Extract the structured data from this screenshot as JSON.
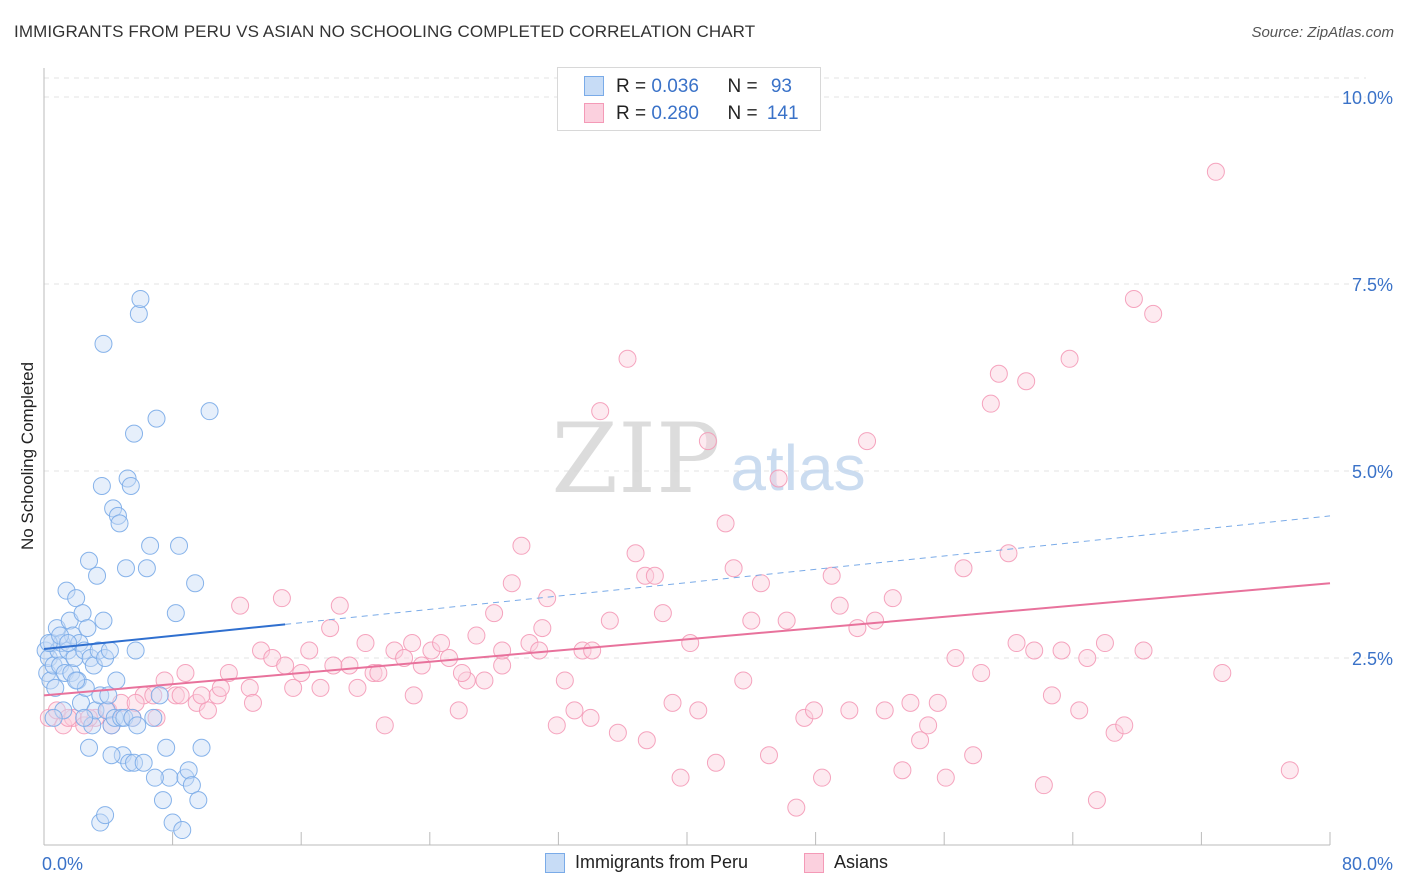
{
  "header": {
    "title": "IMMIGRANTS FROM PERU VS ASIAN NO SCHOOLING COMPLETED CORRELATION CHART",
    "source": "Source: ZipAtlas.com"
  },
  "watermark": {
    "zip": "ZIP",
    "atlas": "atlas"
  },
  "legend": {
    "rows": [
      {
        "r_label": "R = ",
        "r_value": "0.036",
        "n_label": "N = ",
        "n_value": "93",
        "color": "#7aabe8"
      },
      {
        "r_label": "R = ",
        "r_value": "0.280",
        "n_label": "N = ",
        "n_value": "141",
        "color": "#f49ab7"
      }
    ]
  },
  "bottom_legend": [
    {
      "label": "Immigrants from Peru",
      "color": "#7aabe8"
    },
    {
      "label": "Asians",
      "color": "#f49ab7"
    }
  ],
  "chart_data": {
    "type": "scatter",
    "title": "IMMIGRANTS FROM PERU VS ASIAN NO SCHOOLING COMPLETED CORRELATION CHART",
    "xlabel": "",
    "ylabel": "No Schooling Completed",
    "xlim": [
      0,
      80
    ],
    "ylim": [
      0,
      10.5
    ],
    "x_tick_labels": [
      "0.0%",
      "80.0%"
    ],
    "y_ticks": [
      2.5,
      5.0,
      7.5,
      10.0
    ],
    "y_tick_labels": [
      "2.5%",
      "5.0%",
      "7.5%",
      "10.0%"
    ],
    "grid": true,
    "legend_position": "top-center",
    "series": [
      {
        "name": "Immigrants from Peru",
        "color": "#7aabe8",
        "line_color": "#2f6fcf",
        "trend": {
          "x0": 0,
          "y0": 2.62,
          "x1": 15,
          "y1": 2.95,
          "extend_to": 80,
          "y_at_extend": 4.4
        },
        "points": [
          [
            0.1,
            2.6
          ],
          [
            0.2,
            2.3
          ],
          [
            0.3,
            2.5
          ],
          [
            0.4,
            2.2
          ],
          [
            0.5,
            2.7
          ],
          [
            0.6,
            2.4
          ],
          [
            0.7,
            2.1
          ],
          [
            0.8,
            2.9
          ],
          [
            0.9,
            2.6
          ],
          [
            1.0,
            2.4
          ],
          [
            1.1,
            2.7
          ],
          [
            1.2,
            1.8
          ],
          [
            1.3,
            2.3
          ],
          [
            1.4,
            3.4
          ],
          [
            1.5,
            2.6
          ],
          [
            1.6,
            3.0
          ],
          [
            1.7,
            2.3
          ],
          [
            1.8,
            2.8
          ],
          [
            1.9,
            2.5
          ],
          [
            2.0,
            3.3
          ],
          [
            2.1,
            2.2
          ],
          [
            2.2,
            2.7
          ],
          [
            2.3,
            1.9
          ],
          [
            2.4,
            3.1
          ],
          [
            2.5,
            2.6
          ],
          [
            2.6,
            2.1
          ],
          [
            2.7,
            2.9
          ],
          [
            2.8,
            3.8
          ],
          [
            2.9,
            2.5
          ],
          [
            3.0,
            1.6
          ],
          [
            3.1,
            2.4
          ],
          [
            3.2,
            1.8
          ],
          [
            3.3,
            3.6
          ],
          [
            3.4,
            2.6
          ],
          [
            3.5,
            2.0
          ],
          [
            3.6,
            4.8
          ],
          [
            3.7,
            3.0
          ],
          [
            3.8,
            2.5
          ],
          [
            3.9,
            1.8
          ],
          [
            4.0,
            2.0
          ],
          [
            4.1,
            2.6
          ],
          [
            4.2,
            1.6
          ],
          [
            4.3,
            4.5
          ],
          [
            4.4,
            1.7
          ],
          [
            4.5,
            2.2
          ],
          [
            4.6,
            4.4
          ],
          [
            4.7,
            4.3
          ],
          [
            4.8,
            1.7
          ],
          [
            4.9,
            1.2
          ],
          [
            5.0,
            1.7
          ],
          [
            5.1,
            3.7
          ],
          [
            5.2,
            4.9
          ],
          [
            5.3,
            1.1
          ],
          [
            5.4,
            4.8
          ],
          [
            5.5,
            1.7
          ],
          [
            5.6,
            1.1
          ],
          [
            5.7,
            2.6
          ],
          [
            5.8,
            1.6
          ],
          [
            5.9,
            7.1
          ],
          [
            6.0,
            7.3
          ],
          [
            6.2,
            1.1
          ],
          [
            6.4,
            3.7
          ],
          [
            6.6,
            4.0
          ],
          [
            6.8,
            1.7
          ],
          [
            7.0,
            5.7
          ],
          [
            7.2,
            2.0
          ],
          [
            7.4,
            0.6
          ],
          [
            7.6,
            1.3
          ],
          [
            7.8,
            0.9
          ],
          [
            8.0,
            0.3
          ],
          [
            8.2,
            3.1
          ],
          [
            8.4,
            4.0
          ],
          [
            8.6,
            0.2
          ],
          [
            8.8,
            0.9
          ],
          [
            9.0,
            1.0
          ],
          [
            9.2,
            0.8
          ],
          [
            9.4,
            3.5
          ],
          [
            9.6,
            0.6
          ],
          [
            9.8,
            1.3
          ],
          [
            10.3,
            5.8
          ],
          [
            3.7,
            6.7
          ],
          [
            5.6,
            5.5
          ],
          [
            0.3,
            2.7
          ],
          [
            0.6,
            1.7
          ],
          [
            1.0,
            2.8
          ],
          [
            1.5,
            2.7
          ],
          [
            2.0,
            2.2
          ],
          [
            2.5,
            1.7
          ],
          [
            3.5,
            0.3
          ],
          [
            3.8,
            0.4
          ],
          [
            4.2,
            1.2
          ],
          [
            6.9,
            0.9
          ],
          [
            2.8,
            1.3
          ]
        ]
      },
      {
        "name": "Asians",
        "color": "#f49ab7",
        "line_color": "#e8729c",
        "trend": {
          "x0": 0,
          "y0": 2.0,
          "x1": 80,
          "y1": 3.5
        },
        "points": [
          [
            0.3,
            1.7
          ],
          [
            0.8,
            1.8
          ],
          [
            1.2,
            1.6
          ],
          [
            1.8,
            1.7
          ],
          [
            2.5,
            1.6
          ],
          [
            3.2,
            1.7
          ],
          [
            4.0,
            1.8
          ],
          [
            4.8,
            1.9
          ],
          [
            5.5,
            1.7
          ],
          [
            6.2,
            2.0
          ],
          [
            6.8,
            2.0
          ],
          [
            7.5,
            2.2
          ],
          [
            8.2,
            2.0
          ],
          [
            8.8,
            2.3
          ],
          [
            9.5,
            1.9
          ],
          [
            10.2,
            1.8
          ],
          [
            10.8,
            2.0
          ],
          [
            11.5,
            2.3
          ],
          [
            12.2,
            3.2
          ],
          [
            12.8,
            2.1
          ],
          [
            13.5,
            2.6
          ],
          [
            14.2,
            2.5
          ],
          [
            14.8,
            3.3
          ],
          [
            15.5,
            2.1
          ],
          [
            16.0,
            2.3
          ],
          [
            16.5,
            2.6
          ],
          [
            17.2,
            2.1
          ],
          [
            17.8,
            2.9
          ],
          [
            18.4,
            3.2
          ],
          [
            19.0,
            2.4
          ],
          [
            19.5,
            2.1
          ],
          [
            20.0,
            2.7
          ],
          [
            20.5,
            2.3
          ],
          [
            21.2,
            1.6
          ],
          [
            21.8,
            2.6
          ],
          [
            22.4,
            2.5
          ],
          [
            22.9,
            2.7
          ],
          [
            23.5,
            2.4
          ],
          [
            24.1,
            2.6
          ],
          [
            24.7,
            2.7
          ],
          [
            25.2,
            2.5
          ],
          [
            25.8,
            1.8
          ],
          [
            26.3,
            2.2
          ],
          [
            26.9,
            2.8
          ],
          [
            27.4,
            2.2
          ],
          [
            28.0,
            3.1
          ],
          [
            28.5,
            2.4
          ],
          [
            29.1,
            3.5
          ],
          [
            29.7,
            4.0
          ],
          [
            30.2,
            2.7
          ],
          [
            30.8,
            2.6
          ],
          [
            31.3,
            3.3
          ],
          [
            31.9,
            1.6
          ],
          [
            32.4,
            2.2
          ],
          [
            33.0,
            1.8
          ],
          [
            33.5,
            2.6
          ],
          [
            34.1,
            2.6
          ],
          [
            34.6,
            5.8
          ],
          [
            35.2,
            3.0
          ],
          [
            35.7,
            1.5
          ],
          [
            36.3,
            6.5
          ],
          [
            36.8,
            3.9
          ],
          [
            37.4,
            3.6
          ],
          [
            38.0,
            3.6
          ],
          [
            38.5,
            3.1
          ],
          [
            39.1,
            1.9
          ],
          [
            39.6,
            0.9
          ],
          [
            40.2,
            2.7
          ],
          [
            40.7,
            1.8
          ],
          [
            41.3,
            5.4
          ],
          [
            41.8,
            1.1
          ],
          [
            42.4,
            4.3
          ],
          [
            42.9,
            3.7
          ],
          [
            43.5,
            2.2
          ],
          [
            44.0,
            3.0
          ],
          [
            44.6,
            3.5
          ],
          [
            45.1,
            1.2
          ],
          [
            45.7,
            4.9
          ],
          [
            46.2,
            3.0
          ],
          [
            46.8,
            0.5
          ],
          [
            47.3,
            1.7
          ],
          [
            47.9,
            1.8
          ],
          [
            48.4,
            0.9
          ],
          [
            49.0,
            3.6
          ],
          [
            49.5,
            3.2
          ],
          [
            50.1,
            1.8
          ],
          [
            50.6,
            2.9
          ],
          [
            51.2,
            5.4
          ],
          [
            51.7,
            3.0
          ],
          [
            52.3,
            1.8
          ],
          [
            52.8,
            3.3
          ],
          [
            53.4,
            1.0
          ],
          [
            53.9,
            1.9
          ],
          [
            54.5,
            1.4
          ],
          [
            55.0,
            1.6
          ],
          [
            55.6,
            1.9
          ],
          [
            56.1,
            0.9
          ],
          [
            56.7,
            2.5
          ],
          [
            57.2,
            3.7
          ],
          [
            57.8,
            1.2
          ],
          [
            58.3,
            2.3
          ],
          [
            58.9,
            5.9
          ],
          [
            59.4,
            6.3
          ],
          [
            60.0,
            3.9
          ],
          [
            60.5,
            2.7
          ],
          [
            61.1,
            6.2
          ],
          [
            61.6,
            2.6
          ],
          [
            62.2,
            0.8
          ],
          [
            62.7,
            2.0
          ],
          [
            63.3,
            2.6
          ],
          [
            63.8,
            6.5
          ],
          [
            64.4,
            1.8
          ],
          [
            64.9,
            2.5
          ],
          [
            65.5,
            0.6
          ],
          [
            66.0,
            2.7
          ],
          [
            66.6,
            1.5
          ],
          [
            67.2,
            1.6
          ],
          [
            67.8,
            7.3
          ],
          [
            68.4,
            2.6
          ],
          [
            69.0,
            7.1
          ],
          [
            72.9,
            9.0
          ],
          [
            73.3,
            2.3
          ],
          [
            77.5,
            1.0
          ],
          [
            1.5,
            1.7
          ],
          [
            2.8,
            1.7
          ],
          [
            4.2,
            1.6
          ],
          [
            5.7,
            1.9
          ],
          [
            7.0,
            1.7
          ],
          [
            8.5,
            2.0
          ],
          [
            9.8,
            2.0
          ],
          [
            11.0,
            2.1
          ],
          [
            13.0,
            1.9
          ],
          [
            15.0,
            2.4
          ],
          [
            18.0,
            2.4
          ],
          [
            20.8,
            2.3
          ],
          [
            23.0,
            2.0
          ],
          [
            26.0,
            2.3
          ],
          [
            28.5,
            2.6
          ],
          [
            31.0,
            2.9
          ],
          [
            34.0,
            1.7
          ],
          [
            37.5,
            1.4
          ]
        ]
      }
    ]
  }
}
